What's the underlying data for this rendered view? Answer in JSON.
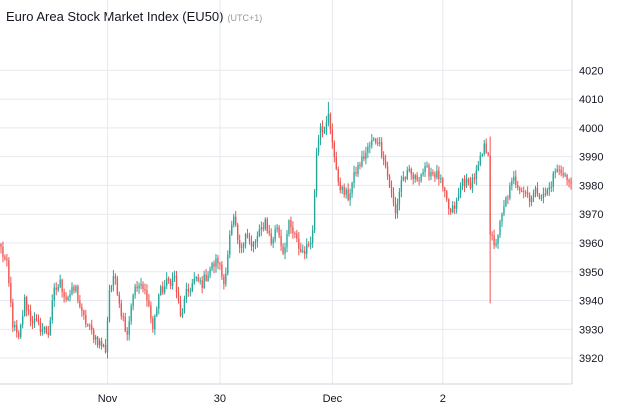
{
  "header": {
    "title": "Euro Area Stock Market Index (EU50)",
    "timezone": "(UTC+1)"
  },
  "colors": {
    "up": "#26a69a",
    "down": "#ef5350",
    "grid": "#e6e9ef",
    "axis_line": "#d1d4dc",
    "text": "#131722"
  },
  "chart_data": {
    "type": "candlestick",
    "title": "Euro Area Stock Market Index (EU50)",
    "subtitle": "(UTC+1)",
    "xlabel": "",
    "ylabel": "",
    "ylim": [
      3911,
      4034
    ],
    "yticks": [
      3920,
      3930,
      3940,
      3950,
      3960,
      3970,
      3980,
      3990,
      4000,
      4010,
      4020
    ],
    "grid": true,
    "legend": "none",
    "xticks": [
      {
        "label": "Nov",
        "index": 54
      },
      {
        "label": "30",
        "index": 111
      },
      {
        "label": "Dec",
        "index": 168
      },
      {
        "label": "2",
        "index": 224
      }
    ],
    "n_candles": 290,
    "keypoints": [
      [
        0,
        3958
      ],
      [
        3,
        3952
      ],
      [
        6,
        3932
      ],
      [
        9,
        3926
      ],
      [
        12,
        3940
      ],
      [
        15,
        3934
      ],
      [
        19,
        3931
      ],
      [
        24,
        3929
      ],
      [
        27,
        3943
      ],
      [
        30,
        3946
      ],
      [
        33,
        3941
      ],
      [
        38,
        3944
      ],
      [
        41,
        3935
      ],
      [
        45,
        3930
      ],
      [
        49,
        3926
      ],
      [
        53,
        3923
      ],
      [
        55,
        3944
      ],
      [
        58,
        3948
      ],
      [
        61,
        3936
      ],
      [
        64,
        3929
      ],
      [
        67,
        3943
      ],
      [
        70,
        3945
      ],
      [
        74,
        3942
      ],
      [
        77,
        3930
      ],
      [
        80,
        3942
      ],
      [
        84,
        3946
      ],
      [
        88,
        3948
      ],
      [
        91,
        3934
      ],
      [
        94,
        3942
      ],
      [
        98,
        3947
      ],
      [
        102,
        3946
      ],
      [
        106,
        3951
      ],
      [
        110,
        3954
      ],
      [
        113,
        3946
      ],
      [
        116,
        3962
      ],
      [
        118,
        3968
      ],
      [
        121,
        3957
      ],
      [
        124,
        3964
      ],
      [
        127,
        3958
      ],
      [
        131,
        3963
      ],
      [
        134,
        3968
      ],
      [
        137,
        3960
      ],
      [
        140,
        3966
      ],
      [
        143,
        3957
      ],
      [
        146,
        3966
      ],
      [
        149,
        3962
      ],
      [
        152,
        3957
      ],
      [
        155,
        3958
      ],
      [
        158,
        3964
      ],
      [
        160,
        3993
      ],
      [
        162,
        4002
      ],
      [
        164,
        3998
      ],
      [
        166,
        4004
      ],
      [
        168,
        3996
      ],
      [
        170,
        3984
      ],
      [
        173,
        3978
      ],
      [
        176,
        3976
      ],
      [
        180,
        3985
      ],
      [
        184,
        3990
      ],
      [
        188,
        3995
      ],
      [
        191,
        3996
      ],
      [
        194,
        3990
      ],
      [
        197,
        3980
      ],
      [
        200,
        3970
      ],
      [
        203,
        3982
      ],
      [
        207,
        3984
      ],
      [
        210,
        3982
      ],
      [
        214,
        3985
      ],
      [
        218,
        3985
      ],
      [
        222,
        3983
      ],
      [
        225,
        3976
      ],
      [
        228,
        3970
      ],
      [
        231,
        3974
      ],
      [
        234,
        3982
      ],
      [
        237,
        3980
      ],
      [
        241,
        3984
      ],
      [
        245,
        3993
      ],
      [
        247,
        3992
      ],
      [
        248,
        3964
      ],
      [
        250,
        3958
      ],
      [
        253,
        3966
      ],
      [
        256,
        3975
      ],
      [
        260,
        3982
      ],
      [
        264,
        3979
      ],
      [
        268,
        3976
      ],
      [
        272,
        3978
      ],
      [
        275,
        3976
      ],
      [
        278,
        3979
      ],
      [
        281,
        3985
      ],
      [
        285,
        3985
      ],
      [
        288,
        3980
      ],
      [
        289,
        3981
      ]
    ],
    "wick_spikes": [
      {
        "index": 166,
        "high": 4009
      },
      {
        "index": 248,
        "low": 3939
      },
      {
        "index": 248,
        "high": 3997
      }
    ],
    "price_range_shown": {
      "low": 3923,
      "high": 4009
    }
  }
}
